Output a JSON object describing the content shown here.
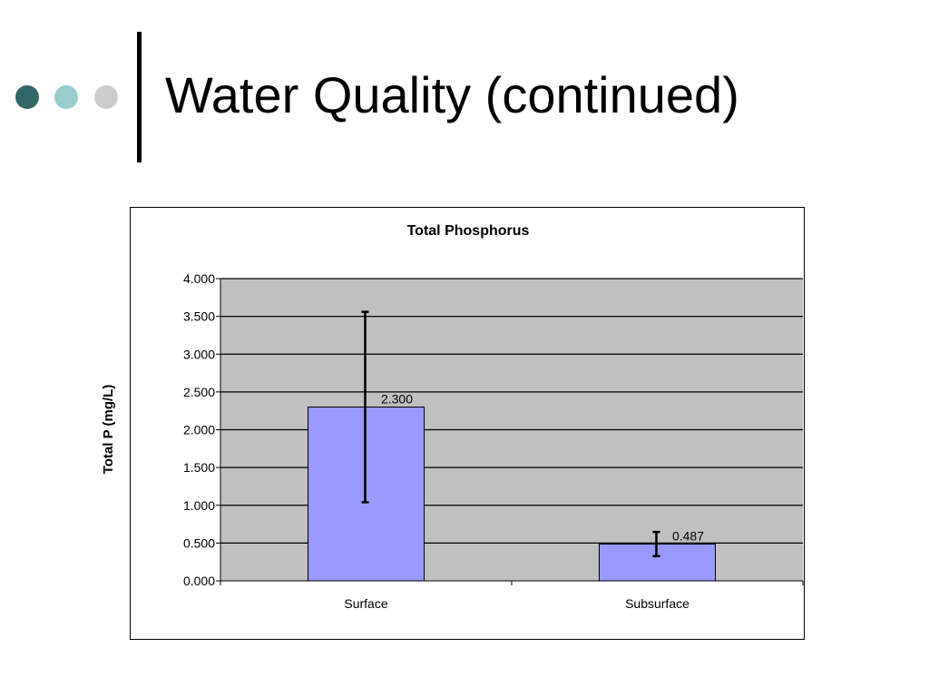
{
  "slide": {
    "title": "Water Quality (continued)",
    "bullet_colors": [
      "#336666",
      "#99CCCC",
      "#CCCCCC"
    ]
  },
  "chart_data": {
    "type": "bar",
    "title": "Total Phosphorus",
    "xlabel": "",
    "ylabel": "Total P (mg/L)",
    "categories": [
      "Surface",
      "Subsurface"
    ],
    "values": [
      2.3,
      0.487
    ],
    "value_labels": [
      "2.300",
      "0.487"
    ],
    "error": [
      1.26,
      0.16
    ],
    "ylim": [
      0,
      4
    ],
    "yticks": [
      0,
      0.5,
      1,
      1.5,
      2,
      2.5,
      3,
      3.5,
      4
    ],
    "ytick_labels": [
      "0.000",
      "0.500",
      "1.000",
      "1.500",
      "2.000",
      "2.500",
      "3.000",
      "3.500",
      "4.000"
    ],
    "grid": true,
    "legend": "none",
    "bar_color": "#9999FF",
    "plot_bg": "#C0C0C0"
  }
}
